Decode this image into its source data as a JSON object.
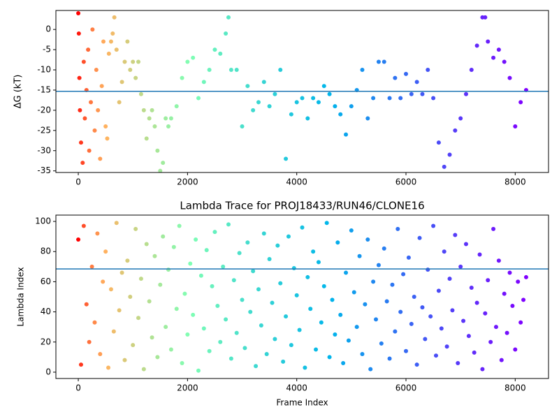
{
  "chart_data": [
    {
      "type": "scatter",
      "ylabel": "ΔG (kT)",
      "x": [
        0,
        10,
        20,
        30,
        50,
        80,
        100,
        120,
        150,
        180,
        200,
        230,
        260,
        300,
        330,
        360,
        400,
        430,
        460,
        500,
        530,
        560,
        600,
        630,
        660,
        700,
        750,
        800,
        850,
        900,
        950,
        1000,
        1050,
        1100,
        1150,
        1200,
        1250,
        1300,
        1350,
        1400,
        1450,
        1500,
        1550,
        1600,
        1650,
        1700,
        1800,
        1900,
        2000,
        2100,
        2200,
        2300,
        2400,
        2500,
        2600,
        2700,
        2750,
        2800,
        2900,
        3000,
        3100,
        3200,
        3300,
        3400,
        3500,
        3600,
        3700,
        3800,
        3900,
        4000,
        4100,
        4200,
        4300,
        4400,
        4500,
        4600,
        4700,
        4800,
        4900,
        5000,
        5100,
        5200,
        5300,
        5400,
        5500,
        5600,
        5700,
        5800,
        5900,
        6000,
        6100,
        6200,
        6300,
        6400,
        6500,
        6600,
        6700,
        6800,
        6900,
        7000,
        7100,
        7200,
        7300,
        7400,
        7450,
        7500,
        7600,
        7700,
        7800,
        7900,
        8000,
        8100,
        8200
      ],
      "y": [
        4,
        -1,
        -12,
        -20,
        -28,
        -33,
        -8,
        -22,
        -15,
        -5,
        -30,
        -18,
        0,
        -25,
        -10,
        -20,
        -32,
        -14,
        -3,
        -24,
        -27,
        -6,
        -3,
        -1,
        3,
        -5,
        -18,
        -13,
        -8,
        -3,
        -10,
        -8,
        -12,
        -8,
        -16,
        -20,
        -27,
        -22,
        -20,
        -24,
        -30,
        -35,
        -33,
        -22,
        -24,
        -22,
        -19,
        -12,
        -8,
        -7,
        -17,
        -13,
        -10,
        -5,
        -6,
        -1,
        3,
        -10,
        -10,
        -24,
        -14,
        -20,
        -18,
        -13,
        -19,
        -16,
        -10,
        -32,
        -21,
        -18,
        -17,
        -22,
        -17,
        -18,
        -14,
        -16,
        -19,
        -21,
        -26,
        -19,
        -15,
        -10,
        -22,
        -17,
        -8,
        -8,
        -17,
        -12,
        -17,
        -11,
        -16,
        -13,
        -16,
        -10,
        -17,
        -28,
        -34,
        -31,
        -25,
        -22,
        -16,
        -10,
        -4,
        3,
        3,
        -3,
        -7,
        -5,
        -8,
        -12,
        -24,
        -18,
        -15
      ],
      "colormap": [
        "#ff0000",
        "#ffb360",
        "#80ffb4",
        "#00b5eb",
        "#8000ff"
      ],
      "color_scale": "sqrt",
      "hline": -15.3,
      "hline_color": "#1f77b4",
      "xlim": [
        -410,
        8610
      ],
      "ylim": [
        -35.4,
        4.7
      ],
      "xticks": [
        0,
        2000,
        4000,
        6000,
        8000
      ],
      "yticks": [
        -35,
        -30,
        -25,
        -20,
        -15,
        -10,
        -5,
        0
      ]
    },
    {
      "type": "scatter",
      "title": "Lambda Trace for PROJ18433/RUN46/CLONE16",
      "xlabel": "Frame Index",
      "ylabel": "Lambda Index",
      "x": [
        0,
        50,
        100,
        150,
        200,
        250,
        300,
        350,
        400,
        450,
        500,
        550,
        600,
        650,
        700,
        750,
        800,
        850,
        900,
        950,
        1000,
        1050,
        1100,
        1150,
        1200,
        1250,
        1300,
        1350,
        1400,
        1450,
        1500,
        1550,
        1600,
        1650,
        1700,
        1750,
        1800,
        1850,
        1900,
        1950,
        2000,
        2050,
        2100,
        2150,
        2200,
        2250,
        2300,
        2350,
        2400,
        2450,
        2500,
        2550,
        2600,
        2650,
        2700,
        2750,
        2800,
        2850,
        2900,
        2950,
        3000,
        3050,
        3100,
        3150,
        3200,
        3250,
        3300,
        3350,
        3400,
        3450,
        3500,
        3550,
        3600,
        3650,
        3700,
        3750,
        3800,
        3850,
        3900,
        3950,
        4000,
        4050,
        4100,
        4150,
        4200,
        4250,
        4300,
        4350,
        4400,
        4450,
        4500,
        4550,
        4600,
        4650,
        4700,
        4750,
        4800,
        4850,
        4900,
        4950,
        5000,
        5050,
        5100,
        5150,
        5200,
        5250,
        5300,
        5350,
        5400,
        5450,
        5500,
        5550,
        5600,
        5650,
        5700,
        5750,
        5800,
        5850,
        5900,
        5950,
        6000,
        6050,
        6100,
        6150,
        6200,
        6250,
        6300,
        6350,
        6400,
        6450,
        6500,
        6550,
        6600,
        6650,
        6700,
        6750,
        6800,
        6850,
        6900,
        6950,
        7000,
        7050,
        7100,
        7150,
        7200,
        7250,
        7300,
        7350,
        7400,
        7450,
        7500,
        7550,
        7600,
        7650,
        7700,
        7750,
        7800,
        7850,
        7900,
        7950,
        8000,
        8050,
        8100,
        8150,
        8200
      ],
      "y": [
        88,
        5,
        97,
        45,
        20,
        70,
        33,
        92,
        12,
        60,
        80,
        3,
        55,
        27,
        99,
        41,
        66,
        8,
        74,
        50,
        18,
        95,
        36,
        62,
        2,
        85,
        47,
        23,
        77,
        10,
        58,
        90,
        30,
        68,
        15,
        83,
        42,
        97,
        6,
        52,
        25,
        72,
        38,
        88,
        1,
        64,
        29,
        81,
        14,
        57,
        93,
        44,
        20,
        70,
        35,
        98,
        9,
        61,
        26,
        79,
        48,
        16,
        86,
        40,
        67,
        4,
        55,
        31,
        92,
        12,
        75,
        46,
        22,
        84,
        59,
        7,
        37,
        90,
        18,
        69,
        51,
        28,
        96,
        3,
        63,
        42,
        80,
        15,
        73,
        33,
        57,
        99,
        10,
        48,
        25,
        86,
        38,
        6,
        66,
        21,
        94,
        53,
        30,
        77,
        12,
        45,
        88,
        2,
        60,
        35,
        71,
        19,
        82,
        47,
        9,
        58,
        27,
        95,
        40,
        65,
        14,
        76,
        32,
        50,
        5,
        89,
        43,
        22,
        68,
        37,
        97,
        11,
        54,
        29,
        80,
        17,
        62,
        41,
        91,
        6,
        70,
        34,
        85,
        24,
        56,
        13,
        46,
        78,
        2,
        39,
        61,
        20,
        95,
        30,
        74,
        8,
        52,
        26,
        66,
        44,
        15,
        60,
        33,
        48,
        63
      ],
      "colormap": [
        "#ff0000",
        "#ffb360",
        "#80ffb4",
        "#00b5eb",
        "#8000ff"
      ],
      "color_scale": "sqrt",
      "hline": 68.5,
      "hline_color": "#1f77b4",
      "xlim": [
        -410,
        8610
      ],
      "ylim": [
        -4.2,
        104.2
      ],
      "xticks": [
        0,
        2000,
        4000,
        6000,
        8000
      ],
      "yticks": [
        0,
        20,
        40,
        60,
        80,
        100
      ]
    }
  ]
}
